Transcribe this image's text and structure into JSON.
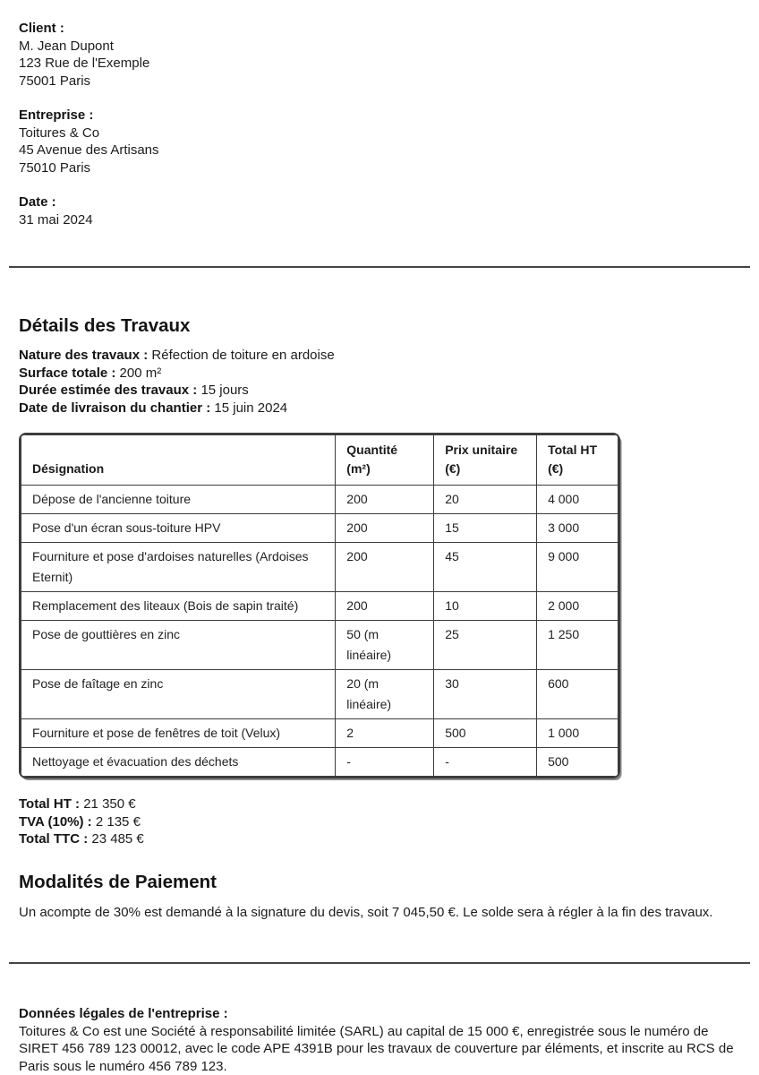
{
  "colors": {
    "text": "#1c1c1c",
    "border": "#3c3c3c"
  },
  "client": {
    "label": "Client :",
    "lines": [
      "M. Jean Dupont",
      "123 Rue de l'Exemple",
      "75001 Paris"
    ]
  },
  "entreprise": {
    "label": "Entreprise :",
    "lines": [
      "Toitures & Co",
      "45 Avenue des Artisans",
      "75010 Paris"
    ]
  },
  "date": {
    "label": "Date :",
    "lines": [
      "31 mai 2024"
    ]
  },
  "details": {
    "title": "Détails des Travaux",
    "fields": [
      {
        "label": "Nature des travaux :",
        "value": "Réfection de toiture en ardoise"
      },
      {
        "label": "Surface totale :",
        "value": "200 m²"
      },
      {
        "label": "Durée estimée des travaux :",
        "value": "15 jours"
      },
      {
        "label": "Date de livraison du chantier :",
        "value": "15 juin 2024"
      }
    ]
  },
  "table": {
    "headers": [
      "Désignation",
      "Quantité (m²)",
      "Prix unitaire (€)",
      "Total HT (€)"
    ],
    "rows": [
      [
        "Dépose de l'ancienne toiture",
        "200",
        "20",
        "4 000"
      ],
      [
        "Pose d'un écran sous-toiture HPV",
        "200",
        "15",
        "3 000"
      ],
      [
        "Fourniture et pose d'ardoises naturelles (Ardoises Eternit)",
        "200",
        "45",
        "9 000"
      ],
      [
        "Remplacement des liteaux (Bois de sapin traité)",
        "200",
        "10",
        "2 000"
      ],
      [
        "Pose de gouttières en zinc",
        "50 (m linéaire)",
        "25",
        "1 250"
      ],
      [
        "Pose de faîtage en zinc",
        "20 (m linéaire)",
        "30",
        "600"
      ],
      [
        "Fourniture et pose de fenêtres de toit (Velux)",
        "2",
        "500",
        "1 000"
      ],
      [
        "Nettoyage et évacuation des déchets",
        "-",
        "-",
        "500"
      ]
    ]
  },
  "totals": [
    {
      "label": "Total HT :",
      "value": "21 350 €"
    },
    {
      "label": "TVA (10%) :",
      "value": "2 135 €"
    },
    {
      "label": "Total TTC :",
      "value": "23 485 €"
    }
  ],
  "payment": {
    "title": "Modalités de Paiement",
    "text": "Un acompte de 30% est demandé à la signature du devis, soit 7 045,50 €. Le solde sera à régler à la fin des travaux."
  },
  "legal": {
    "label": "Données légales de l'entreprise :",
    "text": "Toitures & Co est une Société à responsabilité limitée (SARL) au capital de 15 000 €, enregistrée sous le numéro de SIRET 456 789 123 00012, avec le code APE 4391B pour les travaux de couverture par éléments, et inscrite au RCS de Paris sous le numéro 456 789 123."
  }
}
